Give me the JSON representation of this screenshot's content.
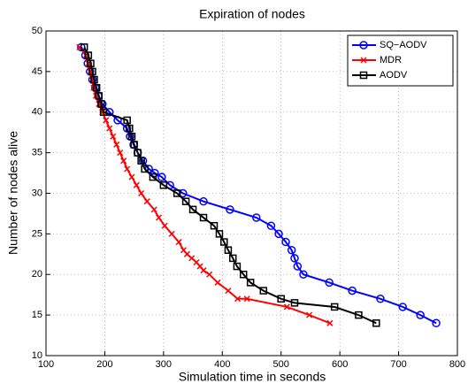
{
  "chart_data": {
    "type": "line",
    "title": "Expiration of nodes",
    "x_label": "Simulation time in seconds",
    "y_label": "Number of nodes alive",
    "xlim": [
      100,
      800
    ],
    "xticks": [
      100,
      200,
      300,
      400,
      500,
      600,
      700,
      800
    ],
    "ylim": [
      10,
      50
    ],
    "yticks": [
      10,
      15,
      20,
      25,
      30,
      35,
      40,
      45,
      50
    ],
    "grid": true,
    "legend": "top-right",
    "series": [
      {
        "name": "SQ−AODV",
        "color": "#0000ff",
        "marker": "circle",
        "x": [
          160,
          167,
          171,
          175,
          179,
          184,
          189,
          196,
          208,
          222,
          238,
          243,
          249,
          256,
          265,
          275,
          285,
          297,
          311,
          333,
          368,
          413,
          458,
          483,
          496,
          508,
          518,
          523,
          528,
          538,
          582,
          621,
          669,
          707,
          737,
          764
        ],
        "values": [
          48,
          47,
          46,
          45,
          44,
          43,
          42,
          41,
          40,
          39,
          38,
          37,
          36,
          35,
          34,
          33,
          32.5,
          32,
          31,
          30,
          29,
          28,
          27,
          26,
          25,
          24,
          23,
          22,
          21,
          20,
          19,
          18,
          17,
          16,
          15,
          14
        ]
      },
      {
        "name": "MDR",
        "color": "#ff0000",
        "marker": "x",
        "x": [
          157,
          168,
          172,
          175,
          178,
          181,
          185,
          190,
          196,
          202,
          208,
          214,
          220,
          226,
          232,
          238,
          246,
          254,
          262,
          272,
          284,
          292,
          302,
          314,
          326,
          334,
          340,
          348,
          356,
          362,
          368,
          378,
          392,
          410,
          426,
          442,
          510,
          548,
          583
        ],
        "values": [
          48,
          47,
          46,
          45,
          44,
          43,
          42,
          41,
          40,
          39,
          38,
          37,
          36,
          35,
          34,
          33,
          32,
          31,
          30,
          29,
          28,
          27,
          26,
          25,
          24,
          23,
          22.5,
          22,
          21.5,
          21,
          20.5,
          20,
          19,
          18,
          17,
          17,
          16,
          15,
          14
        ]
      },
      {
        "name": "AODV",
        "color": "#000000",
        "marker": "square",
        "x": [
          165,
          172,
          176,
          179,
          182,
          186,
          190,
          194,
          198,
          238,
          242,
          246,
          250,
          256,
          262,
          268,
          282,
          300,
          323,
          338,
          350,
          368,
          386,
          395,
          403,
          410,
          418,
          425,
          436,
          448,
          470,
          500,
          523,
          591,
          632,
          662
        ],
        "values": [
          48,
          47,
          46,
          45,
          44,
          43,
          42,
          41,
          40,
          39,
          38,
          37,
          36,
          35,
          34,
          33,
          32,
          31,
          30,
          29,
          28,
          27,
          26,
          25,
          24,
          23,
          22,
          21,
          20,
          19,
          18,
          17,
          16.5,
          16,
          15,
          14
        ]
      }
    ]
  }
}
